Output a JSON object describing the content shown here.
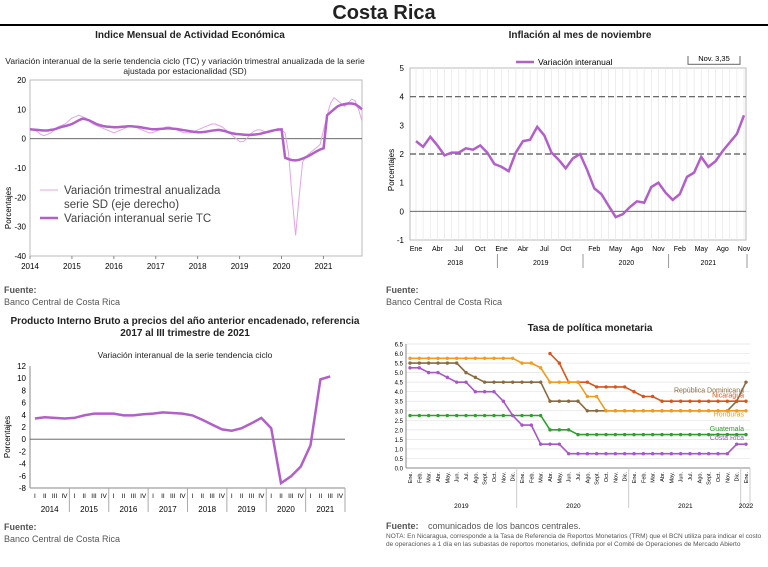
{
  "page": {
    "title": "Costa Rica"
  },
  "panels": {
    "imae": {
      "title": "Indice Mensual de  Actividad Económica",
      "subtitle": "Variación interanual de la serie tendencia ciclo (TC) y variación trimestral anualizada de la serie ajustada por estacionalidad (SD)",
      "source_label": "Fuente:",
      "source": "Banco Central de Costa Rica"
    },
    "inflation": {
      "title": "Inflación al mes de noviembre",
      "source_label": "Fuente:",
      "source": "Banco Central de Costa Rica"
    },
    "pib": {
      "title": "Producto Interno Bruto a precios del año anterior encadenado, referencia 2017 al III trimestre de 2021",
      "subtitle": "Variación interanual de la serie tendencia ciclo",
      "source_label": "Fuente:",
      "source": "Banco Central de Costa Rica"
    },
    "policy": {
      "title": "Tasa de política monetaria",
      "source_label": "Fuente:",
      "source": "comunicados de los bancos centrales.",
      "note": "NOTA: En Nicaragua, corresponde a la Tasa de Referencia de Reportos Monetarios (TRM) que el BCN utiliza para indicar el costo de operaciones a 1 día en las subastas de reportos monetarios, definida por el Comité de Operaciones de Mercado Abierto"
    }
  },
  "chart_data": [
    {
      "id": "imae",
      "type": "line",
      "ylabel": "Porcentajes",
      "ylim": [
        -40,
        20
      ],
      "yticks": [
        -40,
        -30,
        -20,
        -10,
        0,
        10,
        20
      ],
      "xticks": [
        "2014",
        "2015",
        "2016",
        "2017",
        "2018",
        "2019",
        "2020",
        "2021"
      ],
      "x_start": 2014,
      "x_end": 2021.92,
      "legend": {
        "position": "left-middle",
        "items": [
          "Variación trimestral anualizada serie SD (eje derecho)",
          "Variación interanual serie TC"
        ]
      },
      "series": [
        {
          "name": "Variación trimestral anualizada serie SD (eje derecho)",
          "color": "#e5a3e8",
          "width": 1,
          "values": [
            3,
            3,
            2.5,
            1.5,
            1,
            1.5,
            2,
            3,
            4,
            4.5,
            5,
            6,
            7,
            7.5,
            8,
            7.5,
            7,
            6,
            5,
            4.5,
            4,
            3.5,
            3,
            2.5,
            2,
            2.5,
            3,
            3.5,
            4,
            4.5,
            4,
            3.5,
            3,
            2.5,
            2,
            2,
            2.5,
            3,
            3.5,
            4,
            4,
            3.5,
            3,
            2.5,
            2,
            2,
            2,
            2.5,
            3,
            3.5,
            4,
            4.5,
            5,
            5,
            4.5,
            4,
            3,
            2,
            1,
            0,
            -1,
            -1,
            0,
            1.5,
            2.5,
            3,
            3,
            2.5,
            2,
            2.5,
            3,
            3.5,
            3,
            2,
            -5,
            -20,
            -33,
            -20,
            -8,
            -6,
            -5,
            -4,
            -3,
            -2,
            3,
            8,
            12,
            14,
            13,
            12,
            11,
            12,
            13.5,
            13,
            10,
            6
          ]
        },
        {
          "name": "Variación interanual serie TC",
          "color": "#b25fc9",
          "width": 2.5,
          "values": [
            3.2,
            3.1,
            3,
            2.9,
            2.8,
            2.8,
            3,
            3.2,
            3.6,
            4,
            4.3,
            4.6,
            5,
            5.6,
            6.3,
            6.8,
            6.6,
            6.2,
            5.6,
            5,
            4.6,
            4.3,
            4.1,
            4,
            3.9,
            3.9,
            4,
            4.1,
            4.2,
            4.2,
            4.1,
            4,
            3.8,
            3.6,
            3.4,
            3.2,
            3.2,
            3.3,
            3.4,
            3.5,
            3.5,
            3.4,
            3.3,
            3.1,
            2.9,
            2.7,
            2.5,
            2.3,
            2.2,
            2.2,
            2.3,
            2.5,
            2.7,
            2.9,
            3,
            2.8,
            2.5,
            2.1,
            1.8,
            1.6,
            1.5,
            1.4,
            1.3,
            1.3,
            1.4,
            1.5,
            1.7,
            2,
            2.3,
            2.6,
            2.9,
            3.1,
            3.2,
            -6.5,
            -7,
            -7.3,
            -7.4,
            -7.2,
            -6.8,
            -6.3,
            -5.7,
            -5,
            -4.3,
            -3.7,
            -3.3,
            8,
            9,
            10,
            11,
            11.5,
            11.8,
            12,
            12,
            11.8,
            11,
            10
          ]
        }
      ]
    },
    {
      "id": "inflation",
      "type": "line",
      "ylabel": "Porcentajes",
      "ylim": [
        -1,
        5
      ],
      "yticks": [
        -1,
        0,
        1,
        2,
        3,
        4,
        5
      ],
      "xticks": [
        "Ene",
        "Abr",
        "Jul",
        "Oct",
        "Ene",
        "Abr",
        "Jul",
        "Oct",
        "Feb",
        "May",
        "Ago",
        "Nov",
        "Feb",
        "May",
        "Ago",
        "Nov"
      ],
      "xtick_months": [
        0,
        3,
        6,
        9,
        12,
        15,
        18,
        21,
        25,
        28,
        31,
        34,
        37,
        40,
        43,
        46
      ],
      "years": [
        {
          "label": "2018",
          "from": 0,
          "to": 11
        },
        {
          "label": "2019",
          "from": 12,
          "to": 23
        },
        {
          "label": "2020",
          "from": 24,
          "to": 35
        },
        {
          "label": "2021",
          "from": 36,
          "to": 46
        }
      ],
      "ref_lines": [
        4,
        2
      ],
      "annotation": "Nov. 3,35",
      "legend": {
        "position": "top-center",
        "items": [
          "Variación interanual"
        ]
      },
      "series": [
        {
          "name": "Variación interanual",
          "color": "#b25fc9",
          "values": [
            2.45,
            2.25,
            2.6,
            2.3,
            1.95,
            2.05,
            2.05,
            2.2,
            2.15,
            2.3,
            2.05,
            1.65,
            1.55,
            1.4,
            2.05,
            2.45,
            2.5,
            2.95,
            2.65,
            2.05,
            1.8,
            1.5,
            1.85,
            2.0,
            1.45,
            0.8,
            0.6,
            0.2,
            -0.2,
            -0.1,
            0.15,
            0.35,
            0.3,
            0.85,
            1.0,
            0.65,
            0.4,
            0.6,
            1.2,
            1.35,
            1.9,
            1.55,
            1.75,
            2.1,
            2.4,
            2.7,
            3.35
          ]
        }
      ]
    },
    {
      "id": "pib",
      "type": "line",
      "ylabel": "Porcentajes",
      "ylim": [
        -8,
        12
      ],
      "yticks": [
        -8,
        -6,
        -4,
        -2,
        0,
        2,
        4,
        6,
        8,
        10,
        12
      ],
      "quarter_labels": [
        "I",
        "II",
        "III",
        "IV"
      ],
      "years": [
        "2014",
        "2015",
        "2016",
        "2017",
        "2018",
        "2019",
        "2020",
        "2021"
      ],
      "series": [
        {
          "name": "",
          "color": "#b25fc9",
          "values": [
            3.4,
            3.6,
            3.5,
            3.4,
            3.5,
            3.9,
            4.2,
            4.2,
            4.2,
            3.9,
            3.9,
            4.1,
            4.2,
            4.4,
            4.3,
            4.2,
            3.9,
            3.2,
            2.4,
            1.6,
            1.4,
            1.8,
            2.6,
            3.5,
            1.8,
            -7.2,
            -6.1,
            -4.5,
            -1.0,
            9.8,
            10.3
          ]
        }
      ]
    },
    {
      "id": "policy",
      "type": "line",
      "ylim": [
        0,
        6.5
      ],
      "yticks": [
        0,
        0.5,
        1.0,
        1.5,
        2.0,
        2.5,
        3.0,
        3.5,
        4.0,
        4.5,
        5.0,
        5.5,
        6.0,
        6.5
      ],
      "xticks": [
        "Ene.",
        "Feb.",
        "Mar.",
        "Abr.",
        "May.",
        "Jun.",
        "Jul.",
        "Ago.",
        "Sept.",
        "Oct.",
        "Nov.",
        "Dic.",
        "Ene.",
        "Feb.",
        "Mar.",
        "Abr.",
        "May.",
        "Jun.",
        "Jul.",
        "Ago.",
        "Sept.",
        "Oct.",
        "Nov.",
        "Dic.",
        "Ene.",
        "Feb.",
        "Mar.",
        "Abr.",
        "May.",
        "Jun.",
        "Jul.",
        "Ago.",
        "Sept.",
        "Oct.",
        "Nov.",
        "Dic.",
        "Ene."
      ],
      "years": [
        {
          "label": "2019",
          "from": 0,
          "to": 11
        },
        {
          "label": "2020",
          "from": 12,
          "to": 23
        },
        {
          "label": "2021",
          "from": 24,
          "to": 35
        },
        {
          "label": "2022",
          "from": 36,
          "to": 36
        }
      ],
      "series": [
        {
          "name": "República Dominicana",
          "color": "#8b6a3e",
          "values": [
            5.5,
            5.5,
            5.5,
            5.5,
            5.5,
            5.5,
            5.0,
            4.75,
            4.5,
            4.5,
            4.5,
            4.5,
            4.5,
            4.5,
            4.5,
            3.5,
            3.5,
            3.5,
            3.5,
            3.0,
            3.0,
            3.0,
            3.0,
            3.0,
            3.0,
            3.0,
            3.0,
            3.0,
            3.0,
            3.0,
            3.0,
            3.0,
            3.0,
            3.0,
            3.0,
            3.5,
            4.5
          ]
        },
        {
          "name": "Nicaragua",
          "color": "#d9541c",
          "values": [
            null,
            null,
            null,
            null,
            null,
            null,
            null,
            null,
            null,
            null,
            null,
            null,
            null,
            null,
            null,
            6.0,
            5.5,
            4.5,
            4.5,
            4.5,
            4.25,
            4.25,
            4.25,
            4.25,
            4.0,
            3.75,
            3.75,
            3.5,
            3.5,
            3.5,
            3.5,
            3.5,
            3.5,
            3.5,
            3.5,
            3.5,
            3.5
          ]
        },
        {
          "name": "Honduras",
          "color": "#f29b1d",
          "values": [
            5.75,
            5.75,
            5.75,
            5.75,
            5.75,
            5.75,
            5.75,
            5.75,
            5.75,
            5.75,
            5.75,
            5.75,
            5.5,
            5.5,
            5.25,
            4.5,
            4.5,
            4.5,
            4.5,
            3.75,
            3.75,
            3.0,
            3.0,
            3.0,
            3.0,
            3.0,
            3.0,
            3.0,
            3.0,
            3.0,
            3.0,
            3.0,
            3.0,
            3.0,
            3.0,
            3.0,
            3.0
          ]
        },
        {
          "name": "Guatemala",
          "color": "#2ea02c",
          "values": [
            2.75,
            2.75,
            2.75,
            2.75,
            2.75,
            2.75,
            2.75,
            2.75,
            2.75,
            2.75,
            2.75,
            2.75,
            2.75,
            2.75,
            2.75,
            2.0,
            2.0,
            2.0,
            1.75,
            1.75,
            1.75,
            1.75,
            1.75,
            1.75,
            1.75,
            1.75,
            1.75,
            1.75,
            1.75,
            1.75,
            1.75,
            1.75,
            1.75,
            1.75,
            1.75,
            1.75,
            1.75
          ]
        },
        {
          "name": "Costa Rica",
          "color": "#a855c8",
          "values": [
            5.25,
            5.25,
            5.0,
            5.0,
            4.75,
            4.5,
            4.5,
            4.0,
            4.0,
            4.0,
            3.5,
            2.75,
            2.25,
            2.25,
            1.25,
            1.25,
            1.25,
            0.75,
            0.75,
            0.75,
            0.75,
            0.75,
            0.75,
            0.75,
            0.75,
            0.75,
            0.75,
            0.75,
            0.75,
            0.75,
            0.75,
            0.75,
            0.75,
            0.75,
            0.75,
            1.25,
            1.25
          ]
        }
      ]
    }
  ]
}
